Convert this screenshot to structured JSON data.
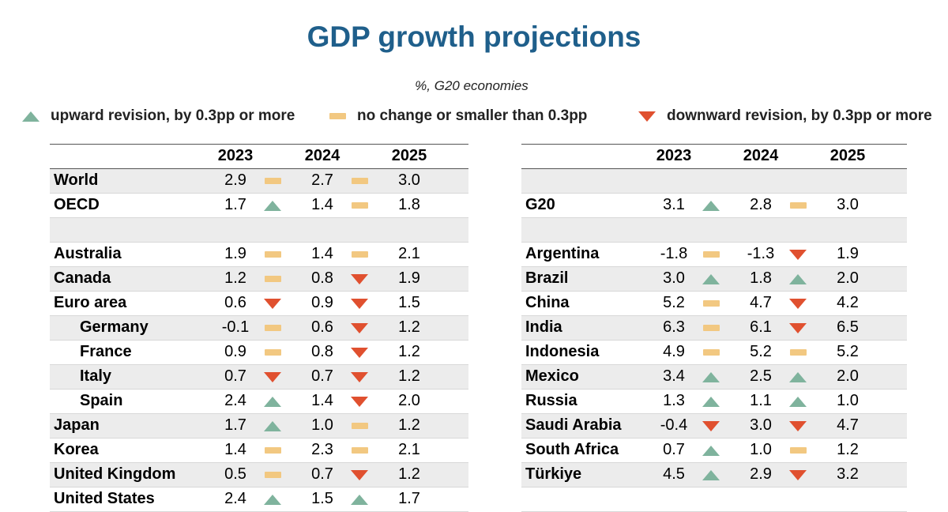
{
  "title": "GDP growth projections",
  "subtitle": "%, G20 economies",
  "legend": [
    {
      "marker": "up",
      "label": "upward revision, by 0.3pp or more"
    },
    {
      "marker": "same",
      "label": "no change or smaller than 0.3pp"
    },
    {
      "marker": "down",
      "label": "downward revision, by 0.3pp or more"
    }
  ],
  "colors": {
    "title": "#1f5f8b",
    "up": "#7fb39d",
    "same": "#f2c881",
    "down": "#e0502f",
    "shade": "#ececec"
  },
  "chart_data": {
    "type": "table",
    "title": "GDP growth projections",
    "subtitle": "%, G20 economies",
    "columns": [
      "2023",
      "2024",
      "2025"
    ],
    "left_table": [
      {
        "name": "World",
        "values": [
          "2.9",
          "2.7",
          "3.0"
        ],
        "revisions": [
          "same",
          "same"
        ]
      },
      {
        "name": "OECD",
        "values": [
          "1.7",
          "1.4",
          "1.8"
        ],
        "revisions": [
          "up",
          "same"
        ]
      },
      {
        "blank": true
      },
      {
        "name": "Australia",
        "values": [
          "1.9",
          "1.4",
          "2.1"
        ],
        "revisions": [
          "same",
          "same"
        ]
      },
      {
        "name": "Canada",
        "values": [
          "1.2",
          "0.8",
          "1.9"
        ],
        "revisions": [
          "same",
          "down"
        ]
      },
      {
        "name": "Euro area",
        "values": [
          "0.6",
          "0.9",
          "1.5"
        ],
        "revisions": [
          "down",
          "down"
        ]
      },
      {
        "name": "Germany",
        "indent": true,
        "values": [
          "-0.1",
          "0.6",
          "1.2"
        ],
        "revisions": [
          "same",
          "down"
        ]
      },
      {
        "name": "France",
        "indent": true,
        "values": [
          "0.9",
          "0.8",
          "1.2"
        ],
        "revisions": [
          "same",
          "down"
        ]
      },
      {
        "name": "Italy",
        "indent": true,
        "values": [
          "0.7",
          "0.7",
          "1.2"
        ],
        "revisions": [
          "down",
          "down"
        ]
      },
      {
        "name": "Spain",
        "indent": true,
        "values": [
          "2.4",
          "1.4",
          "2.0"
        ],
        "revisions": [
          "up",
          "down"
        ]
      },
      {
        "name": "Japan",
        "values": [
          "1.7",
          "1.0",
          "1.2"
        ],
        "revisions": [
          "up",
          "same"
        ]
      },
      {
        "name": "Korea",
        "values": [
          "1.4",
          "2.3",
          "2.1"
        ],
        "revisions": [
          "same",
          "same"
        ]
      },
      {
        "name": "United Kingdom",
        "values": [
          "0.5",
          "0.7",
          "1.2"
        ],
        "revisions": [
          "same",
          "down"
        ]
      },
      {
        "name": "United States",
        "values": [
          "2.4",
          "1.5",
          "1.7"
        ],
        "revisions": [
          "up",
          "up"
        ]
      }
    ],
    "right_table": [
      {
        "blank": true
      },
      {
        "name": "G20",
        "values": [
          "3.1",
          "2.8",
          "3.0"
        ],
        "revisions": [
          "up",
          "same"
        ]
      },
      {
        "blank": true
      },
      {
        "name": "Argentina",
        "values": [
          "-1.8",
          "-1.3",
          "1.9"
        ],
        "revisions": [
          "same",
          "down"
        ]
      },
      {
        "name": "Brazil",
        "values": [
          "3.0",
          "1.8",
          "2.0"
        ],
        "revisions": [
          "up",
          "up"
        ]
      },
      {
        "name": "China",
        "values": [
          "5.2",
          "4.7",
          "4.2"
        ],
        "revisions": [
          "same",
          "down"
        ]
      },
      {
        "name": "India",
        "values": [
          "6.3",
          "6.1",
          "6.5"
        ],
        "revisions": [
          "same",
          "down"
        ]
      },
      {
        "name": "Indonesia",
        "values": [
          "4.9",
          "5.2",
          "5.2"
        ],
        "revisions": [
          "same",
          "same"
        ]
      },
      {
        "name": "Mexico",
        "values": [
          "3.4",
          "2.5",
          "2.0"
        ],
        "revisions": [
          "up",
          "up"
        ]
      },
      {
        "name": "Russia",
        "values": [
          "1.3",
          "1.1",
          "1.0"
        ],
        "revisions": [
          "up",
          "up"
        ]
      },
      {
        "name": "Saudi Arabia",
        "values": [
          "-0.4",
          "3.0",
          "4.7"
        ],
        "revisions": [
          "down",
          "down"
        ]
      },
      {
        "name": "South Africa",
        "values": [
          "0.7",
          "1.0",
          "1.2"
        ],
        "revisions": [
          "up",
          "same"
        ]
      },
      {
        "name": "Türkiye",
        "values": [
          "4.5",
          "2.9",
          "3.2"
        ],
        "revisions": [
          "up",
          "down"
        ]
      },
      {
        "blank": true
      }
    ]
  }
}
